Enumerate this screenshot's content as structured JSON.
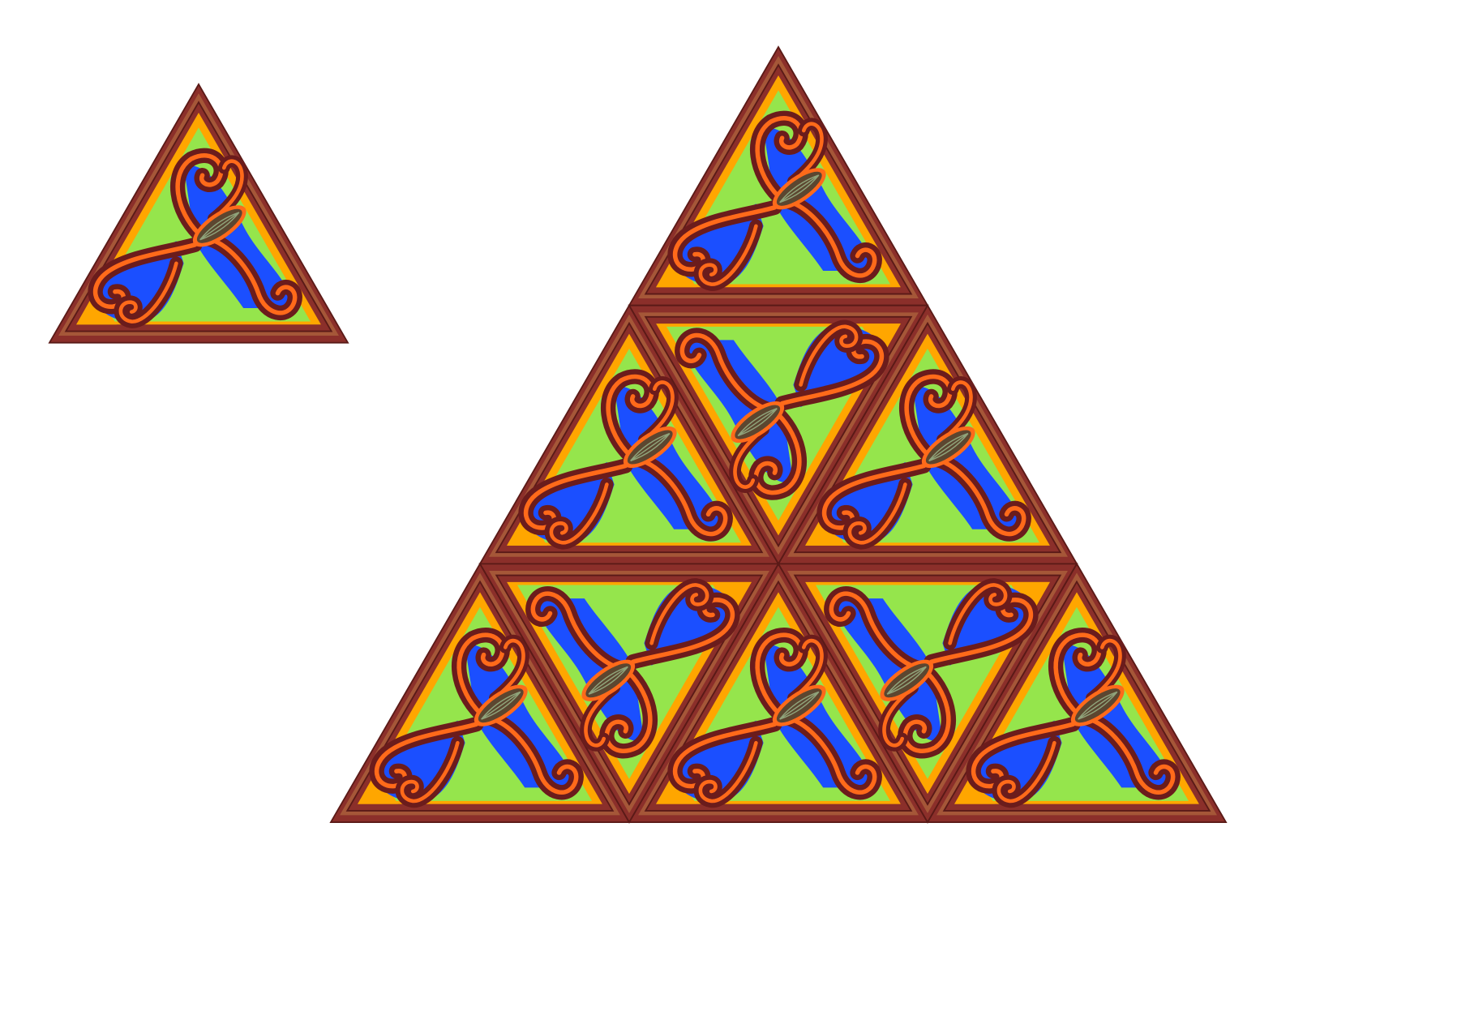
{
  "title": "",
  "colors": {
    "background": "#ffffff",
    "rim": "#8b2f2a",
    "rim_edge": "#5a1a17",
    "rim_band": "#a55738",
    "orange": "#ffa600",
    "green": "#95e54c",
    "blue": "#1b4fff",
    "scroll_dark": "#6b1c1c",
    "scroll_line": "#ff6a1a",
    "seed": "#5c4630",
    "seed_vein": "#8fa37a"
  },
  "icons": {
    "tile": "triangle-tile-icon",
    "motif": "triskele-scroll-icon"
  },
  "layout_words": {
    "single_tile": "top-left",
    "assembly": "right",
    "assembly_rows": 3,
    "assembly_tile_count": 9
  }
}
